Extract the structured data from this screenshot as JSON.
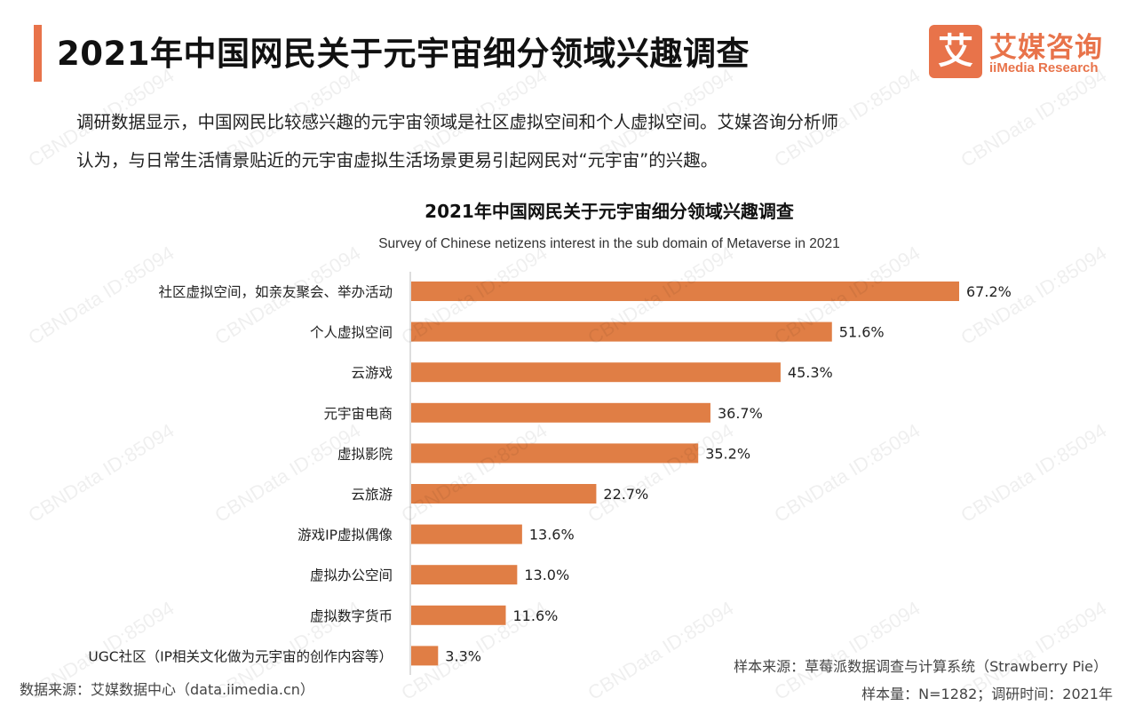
{
  "header": {
    "title": "2021年中国网民关于元宇宙细分领域兴趣调查",
    "logo_cn": "艾媒咨询",
    "logo_en": "iiMedia Research",
    "logo_mark": "艾"
  },
  "intro": {
    "line1": "调研数据显示，中国网民比较感兴趣的元宇宙领域是社区虚拟空间和个人虚拟空间。艾媒咨询分析师",
    "line2": "认为，与日常生活情景贴近的元宇宙虚拟生活场景更易引起网民对“元宇宙”的兴趣。"
  },
  "watermark": "CBNData ID:85094",
  "colors": {
    "bar": "#e07e45",
    "accent": "#e8734a"
  },
  "chart_data": {
    "type": "bar",
    "orientation": "horizontal",
    "title": "2021年中国网民关于元宇宙细分领域兴趣调查",
    "subtitle": "Survey of Chinese netizens interest in the sub domain of Metaverse in 2021",
    "categories": [
      "社区虚拟空间，如亲友聚会、举办活动",
      "个人虚拟空间",
      "云游戏",
      "元宇宙电商",
      "虚拟影院",
      "云旅游",
      "游戏IP虚拟偶像",
      "虚拟办公空间",
      "虚拟数字货币",
      "UGC社区（IP相关文化做为元宇宙的创作内容等）"
    ],
    "values": [
      67.2,
      51.6,
      45.3,
      36.7,
      35.2,
      22.7,
      13.6,
      13.0,
      11.6,
      3.3
    ],
    "value_labels": [
      "67.2%",
      "51.6%",
      "45.3%",
      "36.7%",
      "35.2%",
      "22.7%",
      "13.6%",
      "13.0%",
      "11.6%",
      "3.3%"
    ],
    "unit": "%",
    "xlim": [
      0,
      67.2
    ],
    "grid": false,
    "legend": "none"
  },
  "footer": {
    "source_left": "数据来源：艾媒数据中心（data.iimedia.cn）",
    "sample_source": "样本来源：草莓派数据调查与计算系统（Strawberry Pie）",
    "sample_info": "样本量：N=1282；调研时间：2021年"
  }
}
